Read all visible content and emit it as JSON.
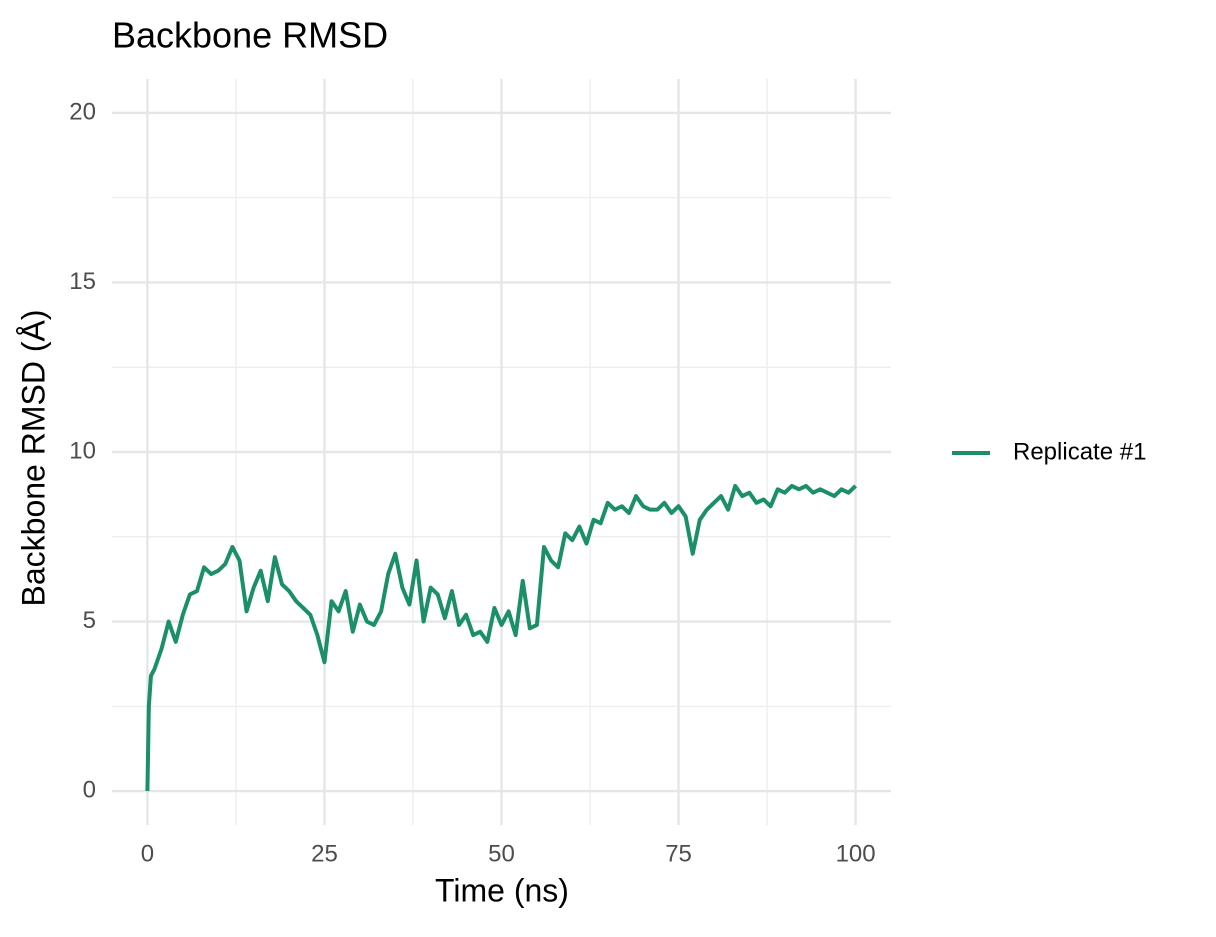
{
  "chart_data": {
    "type": "line",
    "title": "Backbone RMSD",
    "x_label": "Time (ns)",
    "y_label": "Backbone RMSD (Å)",
    "x": [
      0,
      0.2,
      0.5,
      1,
      2,
      3,
      4,
      5,
      6,
      7,
      8,
      9,
      10,
      11,
      12,
      13,
      14,
      15,
      16,
      17,
      18,
      19,
      20,
      21,
      22,
      23,
      24,
      25,
      26,
      27,
      28,
      29,
      30,
      31,
      32,
      33,
      34,
      35,
      36,
      37,
      38,
      39,
      40,
      41,
      42,
      43,
      44,
      45,
      46,
      47,
      48,
      49,
      50,
      51,
      52,
      53,
      54,
      55,
      56,
      57,
      58,
      59,
      60,
      61,
      62,
      63,
      64,
      65,
      66,
      67,
      68,
      69,
      70,
      71,
      72,
      73,
      74,
      75,
      76,
      77,
      78,
      79,
      80,
      81,
      82,
      83,
      84,
      85,
      86,
      87,
      88,
      89,
      90,
      91,
      92,
      93,
      94,
      95,
      96,
      97,
      98,
      99,
      100
    ],
    "series": [
      {
        "name": "Replicate #1",
        "color": "#1b9068",
        "values": [
          0,
          2.5,
          3.4,
          3.6,
          4.2,
          5.0,
          4.4,
          5.2,
          5.8,
          5.9,
          6.6,
          6.4,
          6.5,
          6.7,
          7.2,
          6.8,
          5.3,
          6.0,
          6.5,
          5.6,
          6.9,
          6.1,
          5.9,
          5.6,
          5.4,
          5.2,
          4.6,
          3.8,
          5.6,
          5.3,
          5.9,
          4.7,
          5.5,
          5.0,
          4.9,
          5.3,
          6.4,
          7.0,
          6.0,
          5.5,
          6.8,
          5.0,
          6.0,
          5.8,
          5.1,
          5.9,
          4.9,
          5.2,
          4.6,
          4.7,
          4.4,
          5.4,
          4.9,
          5.3,
          4.6,
          6.2,
          4.8,
          4.9,
          7.2,
          6.8,
          6.6,
          7.6,
          7.4,
          7.8,
          7.3,
          8.0,
          7.9,
          8.5,
          8.3,
          8.4,
          8.2,
          8.7,
          8.4,
          8.3,
          8.3,
          8.5,
          8.2,
          8.4,
          8.1,
          7.0,
          8.0,
          8.3,
          8.5,
          8.7,
          8.3,
          9.0,
          8.7,
          8.8,
          8.5,
          8.6,
          8.4,
          8.9,
          8.8,
          9.0,
          8.9,
          9.0,
          8.8,
          8.9,
          8.8,
          8.7,
          8.9,
          8.8,
          9.0
        ]
      }
    ],
    "xlim": [
      -5,
      105
    ],
    "ylim": [
      -1,
      21
    ],
    "xticks": [
      0,
      25,
      50,
      75,
      100
    ],
    "yticks": [
      0,
      5,
      10,
      15,
      20
    ],
    "grid": true,
    "legend": "right"
  }
}
